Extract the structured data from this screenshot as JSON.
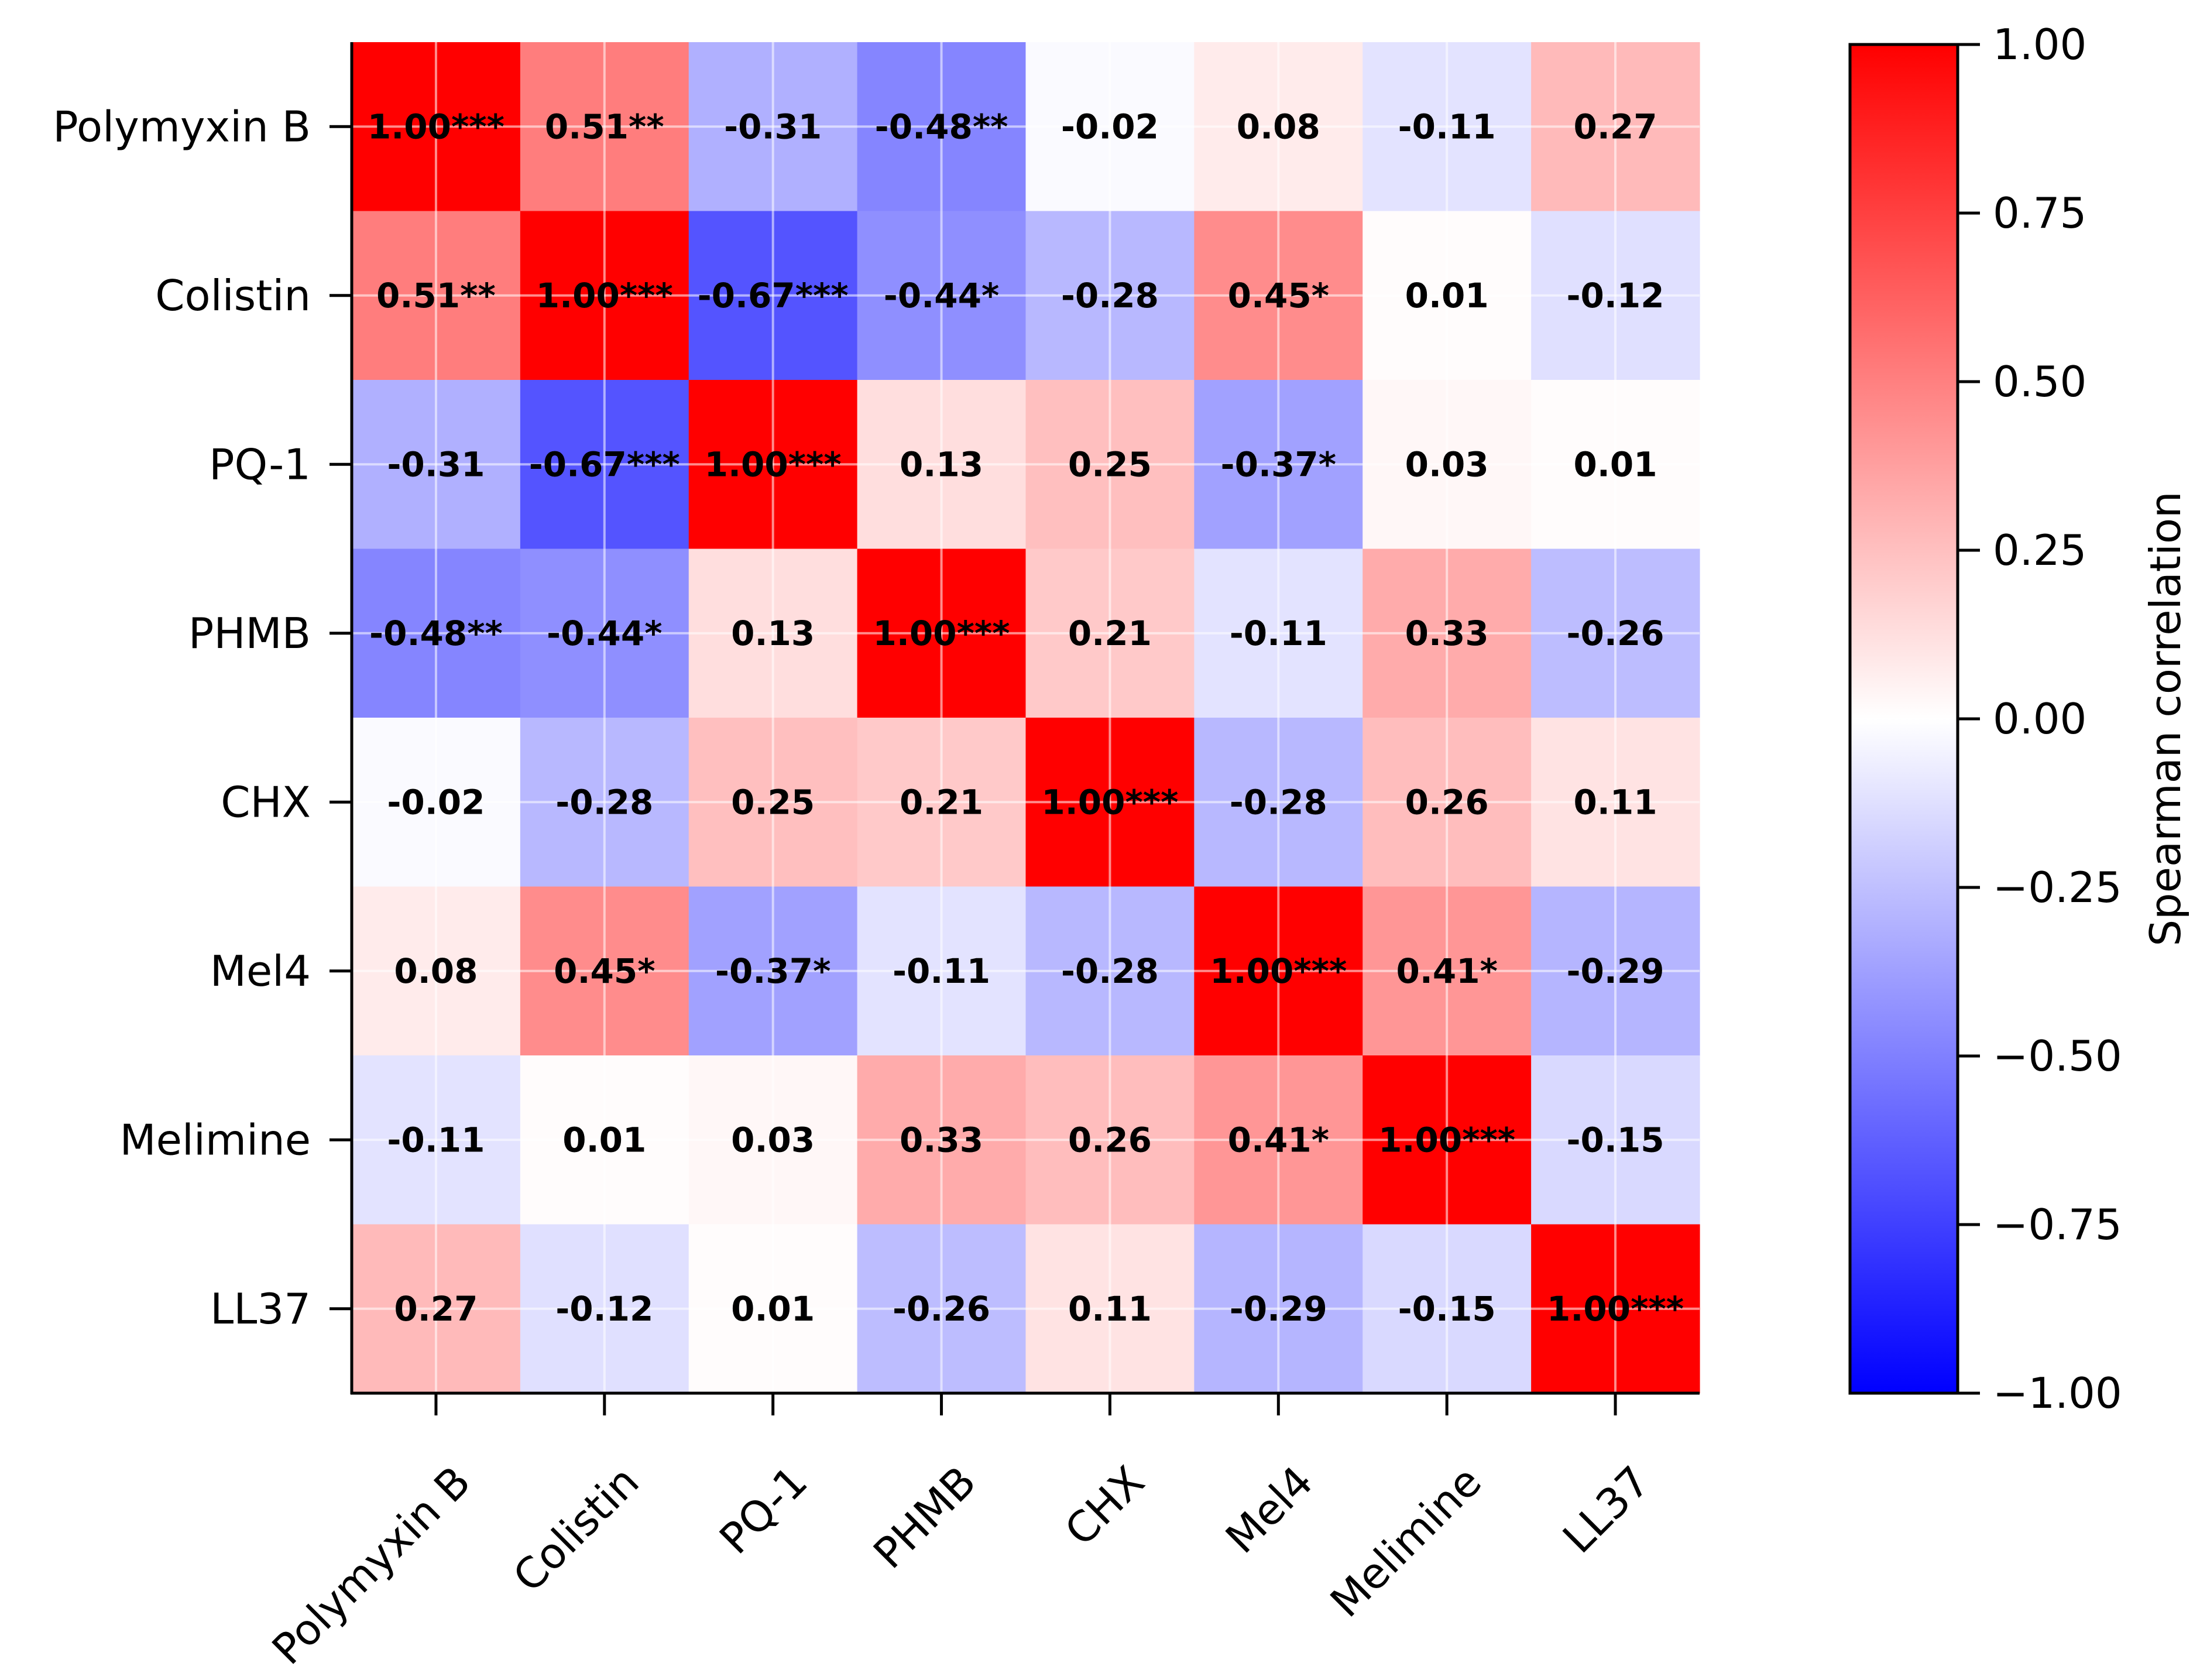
{
  "chart_data": {
    "type": "heatmap",
    "rows": [
      "Polymyxin B",
      "Colistin",
      "PQ-1",
      "PHMB",
      "CHX",
      "Mel4",
      "Melimine",
      "LL37"
    ],
    "columns": [
      "Polymyxin B",
      "Colistin",
      "PQ-1",
      "PHMB",
      "CHX",
      "Mel4",
      "Melimine",
      "LL37"
    ],
    "values": [
      [
        1.0,
        0.51,
        -0.31,
        -0.48,
        -0.02,
        0.08,
        -0.11,
        0.27
      ],
      [
        0.51,
        1.0,
        -0.67,
        -0.44,
        -0.28,
        0.45,
        0.01,
        -0.12
      ],
      [
        -0.31,
        -0.67,
        1.0,
        0.13,
        0.25,
        -0.37,
        0.03,
        0.01
      ],
      [
        -0.48,
        -0.44,
        0.13,
        1.0,
        0.21,
        -0.11,
        0.33,
        -0.26
      ],
      [
        -0.02,
        -0.28,
        0.25,
        0.21,
        1.0,
        -0.28,
        0.26,
        0.11
      ],
      [
        0.08,
        0.45,
        -0.37,
        -0.11,
        -0.28,
        1.0,
        0.41,
        -0.29
      ],
      [
        -0.11,
        0.01,
        0.03,
        0.33,
        0.26,
        0.41,
        1.0,
        -0.15
      ],
      [
        0.27,
        -0.12,
        0.01,
        -0.26,
        0.11,
        -0.29,
        -0.15,
        1.0
      ]
    ],
    "annotations": [
      [
        "1.00***",
        "0.51**",
        "-0.31",
        "-0.48**",
        "-0.02",
        "0.08",
        "-0.11",
        "0.27"
      ],
      [
        "0.51**",
        "1.00***",
        "-0.67***",
        "-0.44*",
        "-0.28",
        "0.45*",
        "0.01",
        "-0.12"
      ],
      [
        "-0.31",
        "-0.67***",
        "1.00***",
        "0.13",
        "0.25",
        "-0.37*",
        "0.03",
        "0.01"
      ],
      [
        "-0.48**",
        "-0.44*",
        "0.13",
        "1.00***",
        "0.21",
        "-0.11",
        "0.33",
        "-0.26"
      ],
      [
        "-0.02",
        "-0.28",
        "0.25",
        "0.21",
        "1.00***",
        "-0.28",
        "0.26",
        "0.11"
      ],
      [
        "0.08",
        "0.45*",
        "-0.37*",
        "-0.11",
        "-0.28",
        "1.00***",
        "0.41*",
        "-0.29"
      ],
      [
        "-0.11",
        "0.01",
        "0.03",
        "0.33",
        "0.26",
        "0.41*",
        "1.00***",
        "-0.15"
      ],
      [
        "0.27",
        "-0.12",
        "0.01",
        "-0.26",
        "0.11",
        "-0.29",
        "-0.15",
        "1.00***"
      ]
    ],
    "colormap": "bwr",
    "colors": {
      "low": "#0000ff",
      "mid": "#ffffff",
      "high": "#ff0000"
    },
    "vmin": -1.0,
    "vmax": 1.0,
    "grid": true,
    "colorbar": {
      "label": "Spearman correlation",
      "ticks": [
        1.0,
        0.75,
        0.5,
        0.25,
        0.0,
        -0.25,
        -0.5,
        -0.75,
        -1.0
      ],
      "tick_labels": [
        "1.00",
        "0.75",
        "0.50",
        "0.25",
        "0.00",
        "−0.25",
        "−0.50",
        "−0.75",
        "−1.00"
      ]
    }
  }
}
